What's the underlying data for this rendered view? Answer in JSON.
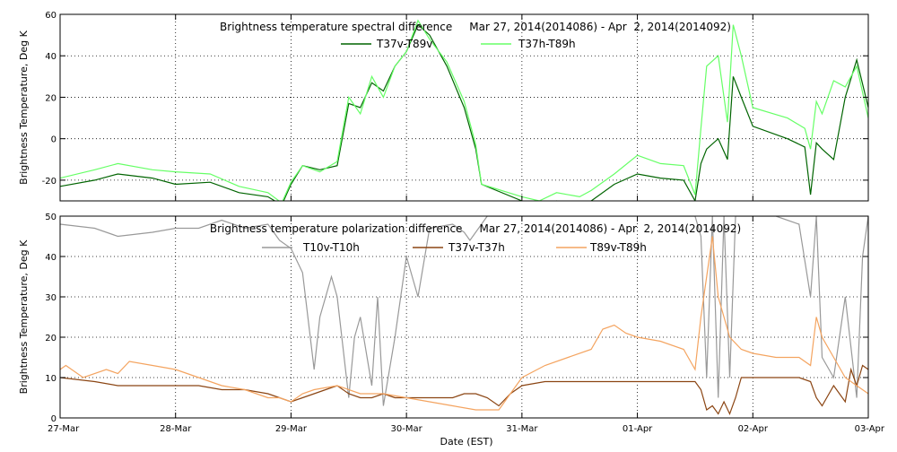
{
  "xlabel": "Date (EST)",
  "x_tick_labels": [
    "27-Mar",
    "28-Mar",
    "29-Mar",
    "30-Mar",
    "31-Mar",
    "01-Apr",
    "02-Apr",
    "03-Apr"
  ],
  "chart_data": [
    {
      "type": "line",
      "title": "Brightness temperature spectral difference     Mar 27, 2014(2014086) - Apr  2, 2014(2014092)",
      "ylabel": "Brightness Temperature, Deg K",
      "xlim": [
        0,
        7
      ],
      "ylim": [
        -30,
        60
      ],
      "yticks": [
        -20,
        0,
        20,
        40,
        60
      ],
      "grid": "dotted",
      "legend": "top",
      "series": [
        {
          "name": "T37v-T89v",
          "color": "#006400",
          "x": [
            0,
            0.3,
            0.5,
            0.8,
            1.0,
            1.3,
            1.55,
            1.8,
            1.92,
            2.0,
            2.1,
            2.25,
            2.4,
            2.5,
            2.6,
            2.7,
            2.8,
            2.9,
            3.0,
            3.1,
            3.2,
            3.35,
            3.5,
            3.6,
            3.65,
            4.0,
            4.15,
            4.3,
            4.5,
            4.6,
            4.8,
            5.0,
            5.2,
            5.4,
            5.5,
            5.55,
            5.6,
            5.7,
            5.78,
            5.83,
            5.9,
            6.0,
            6.3,
            6.45,
            6.5,
            6.55,
            6.6,
            6.7,
            6.8,
            6.9,
            7.0
          ],
          "y": [
            -23,
            -20,
            -17,
            -19,
            -22,
            -21,
            -26,
            -28,
            -32,
            -22,
            -13,
            -15,
            -13,
            17,
            15,
            27,
            23,
            35,
            42,
            55,
            50,
            35,
            15,
            -5,
            -22,
            -30,
            -33,
            -30,
            -32,
            -30,
            -22,
            -17,
            -19,
            -20,
            -30,
            -12,
            -5,
            0,
            -10,
            30,
            20,
            6,
            0,
            -4,
            -27,
            -2,
            -5,
            -10,
            20,
            38,
            15
          ]
        },
        {
          "name": "T37h-T89h",
          "color": "#66ff66",
          "x": [
            0,
            0.3,
            0.5,
            0.8,
            1.0,
            1.3,
            1.55,
            1.8,
            1.92,
            2.0,
            2.1,
            2.25,
            2.4,
            2.5,
            2.6,
            2.7,
            2.8,
            2.9,
            3.0,
            3.1,
            3.2,
            3.35,
            3.5,
            3.6,
            3.65,
            4.0,
            4.15,
            4.3,
            4.5,
            4.6,
            4.8,
            5.0,
            5.2,
            5.4,
            5.5,
            5.55,
            5.6,
            5.7,
            5.78,
            5.83,
            5.9,
            6.0,
            6.3,
            6.45,
            6.5,
            6.55,
            6.6,
            6.7,
            6.8,
            6.9,
            7.0
          ],
          "y": [
            -19,
            -15,
            -12,
            -15,
            -16,
            -17,
            -23,
            -26,
            -31,
            -21,
            -13,
            -16,
            -11,
            20,
            12,
            30,
            20,
            35,
            42,
            57,
            48,
            37,
            18,
            -3,
            -22,
            -28,
            -30,
            -26,
            -28,
            -25,
            -17,
            -8,
            -12,
            -13,
            -27,
            5,
            35,
            40,
            8,
            55,
            40,
            15,
            10,
            5,
            -5,
            18,
            12,
            28,
            25,
            35,
            10
          ]
        }
      ]
    },
    {
      "type": "line",
      "title": "Brightness temperature polarization difference     Mar 27, 2014(2014086) - Apr  2, 2014(2014092)",
      "ylabel": "Brightness Temperature, Deg K",
      "xlim": [
        0,
        7
      ],
      "ylim": [
        0,
        50
      ],
      "yticks": [
        0,
        10,
        20,
        30,
        40,
        50
      ],
      "grid": "dotted",
      "legend": "top",
      "series": [
        {
          "name": "T10v-T10h",
          "color": "#999999",
          "x": [
            0,
            0.3,
            0.5,
            0.8,
            1.0,
            1.2,
            1.4,
            1.6,
            1.8,
            1.9,
            2.0,
            2.1,
            2.2,
            2.25,
            2.35,
            2.4,
            2.5,
            2.55,
            2.6,
            2.7,
            2.75,
            2.8,
            2.9,
            3.0,
            3.1,
            3.2,
            3.4,
            3.5,
            3.55,
            3.7,
            3.8,
            3.9,
            4.0,
            4.2,
            4.5,
            5.0,
            5.3,
            5.5,
            5.55,
            5.6,
            5.65,
            5.7,
            5.75,
            5.8,
            5.85,
            5.9,
            6.0,
            6.2,
            6.4,
            6.5,
            6.55,
            6.6,
            6.7,
            6.8,
            6.9,
            6.95,
            7.0
          ],
          "y": [
            48,
            47,
            45,
            46,
            47,
            47,
            49,
            47,
            48,
            44,
            42,
            36,
            12,
            25,
            35,
            30,
            5,
            20,
            25,
            8,
            30,
            3,
            20,
            40,
            30,
            47,
            48,
            46,
            44,
            50,
            50,
            50,
            50,
            50,
            50,
            50,
            50,
            50,
            45,
            10,
            50,
            5,
            50,
            10,
            50,
            50,
            50,
            50,
            48,
            30,
            50,
            15,
            10,
            30,
            5,
            40,
            50
          ]
        },
        {
          "name": "T37v-T37h",
          "color": "#8b4513",
          "x": [
            0,
            0.3,
            0.5,
            0.8,
            1.0,
            1.2,
            1.4,
            1.6,
            1.8,
            1.9,
            2.0,
            2.1,
            2.2,
            2.3,
            2.4,
            2.5,
            2.6,
            2.7,
            2.8,
            2.9,
            3.0,
            3.2,
            3.4,
            3.5,
            3.6,
            3.7,
            3.8,
            3.9,
            4.0,
            4.2,
            4.5,
            5.0,
            5.3,
            5.5,
            5.55,
            5.6,
            5.65,
            5.7,
            5.75,
            5.8,
            5.85,
            5.9,
            6.0,
            6.2,
            6.4,
            6.5,
            6.55,
            6.6,
            6.7,
            6.8,
            6.85,
            6.9,
            6.95,
            7.0
          ],
          "y": [
            10,
            9,
            8,
            8,
            8,
            8,
            7,
            7,
            6,
            5,
            4,
            5,
            6,
            7,
            8,
            6,
            5,
            5,
            6,
            5,
            5,
            5,
            5,
            6,
            6,
            5,
            3,
            6,
            8,
            9,
            9,
            9,
            9,
            9,
            7,
            2,
            3,
            1,
            4,
            1,
            5,
            10,
            10,
            10,
            10,
            9,
            5,
            3,
            8,
            4,
            12,
            8,
            13,
            12
          ]
        },
        {
          "name": "T89v-T89h",
          "color": "#f4a460",
          "x": [
            0,
            0.05,
            0.2,
            0.4,
            0.5,
            0.6,
            0.8,
            1.0,
            1.2,
            1.4,
            1.6,
            1.8,
            1.9,
            2.0,
            2.1,
            2.2,
            2.4,
            2.6,
            2.8,
            3.0,
            3.2,
            3.4,
            3.6,
            3.8,
            3.9,
            4.0,
            4.2,
            4.4,
            4.6,
            4.7,
            4.8,
            4.9,
            5.0,
            5.2,
            5.4,
            5.5,
            5.55,
            5.6,
            5.65,
            5.7,
            5.75,
            5.8,
            5.9,
            6.0,
            6.2,
            6.4,
            6.5,
            6.55,
            6.6,
            6.7,
            6.8,
            6.9,
            7.0
          ],
          "y": [
            12,
            13,
            10,
            12,
            11,
            14,
            13,
            12,
            10,
            8,
            7,
            5,
            5,
            4,
            6,
            7,
            8,
            6,
            6,
            5,
            4,
            3,
            2,
            2,
            6,
            10,
            13,
            15,
            17,
            22,
            23,
            21,
            20,
            19,
            17,
            12,
            25,
            35,
            45,
            30,
            25,
            20,
            17,
            16,
            15,
            15,
            13,
            25,
            20,
            15,
            10,
            8,
            6
          ]
        }
      ]
    }
  ]
}
